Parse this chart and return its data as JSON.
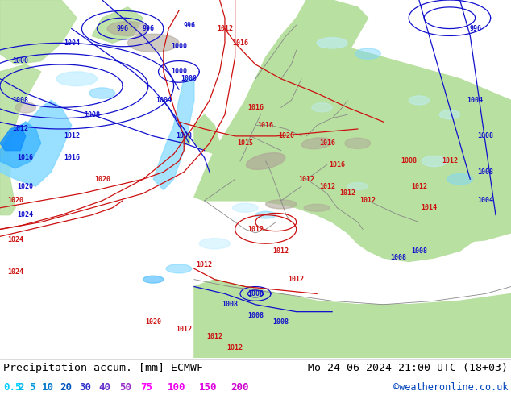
{
  "title_left": "Precipitation accum. [mm] ECMWF",
  "title_right": "Mo 24-06-2024 21:00 UTC (18+03)",
  "credit": "©weatheronline.co.uk",
  "legend_values": [
    "0.5",
    "2",
    "5",
    "10",
    "20",
    "30",
    "40",
    "50",
    "75",
    "100",
    "150",
    "200"
  ],
  "legend_colors": [
    "#00d0ff",
    "#00b8f0",
    "#0099e0",
    "#0077cc",
    "#0055bb",
    "#3333cc",
    "#6633cc",
    "#9933cc",
    "#ff00ff",
    "#ee00ee",
    "#dd00dd",
    "#cc00cc"
  ],
  "bg_color": "#f0f0f0",
  "land_green": "#b8e0a0",
  "land_dark_green": "#90c878",
  "sea_grey": "#e8e8e8",
  "mountain_grey": "#b0a898",
  "precip_1": "#c0eeff",
  "precip_2": "#80d8ff",
  "precip_3": "#40b8ff",
  "precip_4": "#1090ff",
  "contour_blue": "#1010cc",
  "contour_red": "#cc1010",
  "border_grey": "#888888",
  "fig_width": 6.34,
  "fig_height": 4.9,
  "dpi": 100,
  "font_family": "monospace",
  "title_fontsize": 9.5,
  "legend_fontsize": 9.0,
  "credit_fontsize": 8.5
}
